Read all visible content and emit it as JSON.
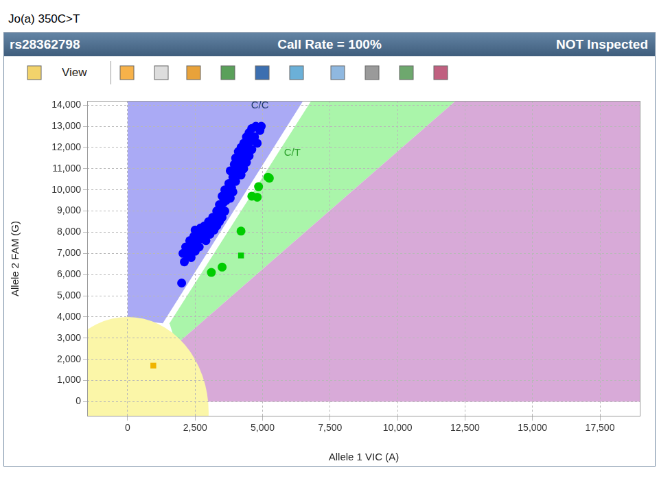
{
  "window": {
    "title": "rs28362798",
    "status": "Call Rate = 100%",
    "inspection": "NOT Inspected",
    "toolbar_label": "View"
  },
  "chart_data": {
    "type": "scatter",
    "title": "Jo(a) 350C>T",
    "x_label": "Allele 1 VIC (A)",
    "y_label": "Allele 2 FAM (G)",
    "xlim": [
      -1500,
      19000
    ],
    "xticks": [
      0,
      {
        "value": 2500,
        "label": "2,500"
      },
      {
        "value": 5000,
        "label": "5,000"
      },
      {
        "value": 7500,
        "label": "7,500"
      },
      {
        "value": 10000,
        "label": "10,000"
      },
      {
        "value": 12500,
        "label": "12,500"
      },
      {
        "value": 15000,
        "label": "15,000"
      },
      {
        "value": 17500,
        "label": "17,500"
      }
    ],
    "ylim": [
      -700,
      14200
    ],
    "yticks": [
      0,
      {
        "value": 1000,
        "label": "1,000"
      },
      {
        "value": 2000,
        "label": "2,000"
      },
      {
        "value": 3000,
        "label": "3,000"
      },
      {
        "value": 4000,
        "label": "4,000"
      },
      {
        "value": 5000,
        "label": "5,000"
      },
      {
        "value": 6000,
        "label": "6,000"
      },
      {
        "value": 7000,
        "label": "7,000"
      },
      {
        "value": 8000,
        "label": "8,000"
      },
      {
        "value": 9000,
        "label": "9,000"
      },
      {
        "value": 10000,
        "label": "10,000"
      },
      {
        "value": 11000,
        "label": "11,000"
      },
      {
        "value": 12000,
        "label": "12,000"
      },
      {
        "value": 13000,
        "label": "13,000"
      },
      {
        "value": 14000,
        "label": "14,000"
      }
    ],
    "grid": true,
    "regions": [
      {
        "color": "#aaaaf5",
        "polygon": [
          [
            0,
            3900
          ],
          [
            0,
            14200
          ],
          [
            6500,
            14200
          ],
          [
            1300,
            3700
          ]
        ]
      },
      {
        "color": "#aaf5aa",
        "polygon": [
          [
            1550,
            3700
          ],
          [
            6800,
            14200
          ],
          [
            12150,
            14200
          ],
          [
            1800,
            2700
          ]
        ]
      },
      {
        "color": "#d8aad8",
        "polygon": [
          [
            1800,
            2700
          ],
          [
            12150,
            14200
          ],
          [
            19000,
            14200
          ],
          [
            19000,
            0
          ],
          [
            2800,
            0
          ]
        ]
      }
    ],
    "no_call_region": {
      "color": "#fbf6a8",
      "center": [
        0,
        -500
      ],
      "radius": [
        3000,
        4500
      ]
    },
    "series": [
      {
        "color": "#0000ff",
        "marker": "circle",
        "x": [
          2000,
          2050,
          2100,
          2150,
          2200,
          2250,
          2300,
          2350,
          2400,
          2450,
          2500,
          2500,
          2550,
          2600,
          2650,
          2700,
          2750,
          2800,
          2850,
          2900,
          2950,
          3000,
          3050,
          3100,
          3150,
          3200,
          3250,
          3300,
          3300,
          3350,
          3400,
          3400,
          3450,
          3500,
          3500,
          3550,
          3600,
          3600,
          3650,
          3700,
          3750,
          3800,
          3800,
          3850,
          3900,
          3900,
          3950,
          4000,
          4000,
          4050,
          4100,
          4100,
          4150,
          4200,
          4200,
          4250,
          4300,
          4300,
          4350,
          4400,
          4400,
          4450,
          4500,
          4500,
          4550,
          4600,
          4600,
          4700,
          4750,
          4800,
          4900,
          4950
        ],
        "y": [
          5600,
          7000,
          6600,
          7300,
          6900,
          7100,
          7600,
          6800,
          7400,
          7800,
          7100,
          8100,
          7500,
          7900,
          7300,
          8200,
          7700,
          7900,
          8300,
          7600,
          8100,
          8500,
          7900,
          8300,
          8700,
          8100,
          8600,
          9000,
          8300,
          8800,
          9300,
          8500,
          9100,
          9700,
          8700,
          9400,
          9000,
          10000,
          9500,
          9800,
          10300,
          9600,
          10900,
          10100,
          10600,
          9900,
          11200,
          10400,
          11500,
          10800,
          11800,
          11000,
          11300,
          12000,
          10700,
          11600,
          12200,
          11000,
          11800,
          12500,
          11300,
          12000,
          12700,
          11600,
          12300,
          12900,
          11900,
          12500,
          13000,
          12200,
          12800,
          13000
        ]
      },
      {
        "color": "#00cc00",
        "marker": "circle",
        "x": [
          3100,
          3500,
          4200,
          4600,
          4800,
          4850,
          5200,
          5250
        ],
        "y": [
          6100,
          6350,
          8050,
          9700,
          9650,
          10150,
          10600,
          10550
        ]
      },
      {
        "color": "#00cc00",
        "marker": "square",
        "x": [
          4200
        ],
        "y": [
          6900
        ]
      },
      {
        "color": "#f0b400",
        "marker": "square",
        "x": [
          950
        ],
        "y": [
          1700
        ]
      }
    ],
    "annotations": [
      {
        "text": "C/C",
        "x": 4900,
        "y": 13980,
        "color": "#1f3a6e"
      },
      {
        "text": "C/T",
        "x": 6100,
        "y": 11750,
        "color": "#2ca02c"
      }
    ]
  }
}
